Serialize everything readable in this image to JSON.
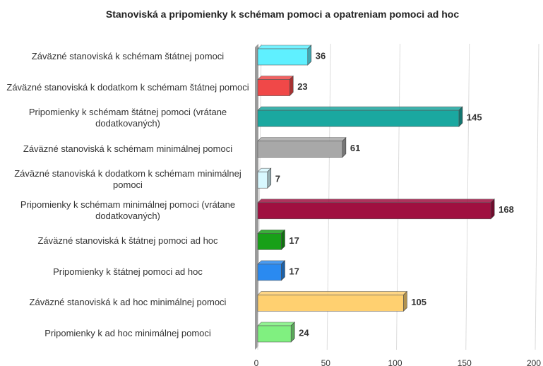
{
  "chart_data": {
    "type": "bar",
    "orientation": "horizontal",
    "title": "Stanoviská a pripomienky k schémam pomoci a opatreniam pomoci ad hoc",
    "categories": [
      "Záväzné stanoviská k schémam štátnej pomoci",
      "Záväzné stanoviská k dodatkom k schémam štátnej pomoci",
      "Pripomienky k schémam štátnej pomoci (vrátane dodatkovaných)",
      "Záväzné stanoviská k schémam minimálnej pomoci",
      "Záväzné stanoviská k dodatkom k schémam minimálnej pomoci",
      "Pripomienky k schémam minimálnej pomoci (vrátane dodatkovaných)",
      "Záväzné stanoviská k štátnej pomoci ad hoc",
      "Pripomienky k štátnej pomoci ad hoc",
      "Záväzné stanoviská k ad hoc minimálnej pomoci",
      "Pripomienky k ad hoc minimálnej pomoci"
    ],
    "values": [
      36,
      23,
      145,
      61,
      7,
      168,
      17,
      17,
      105,
      24
    ],
    "colors": [
      "#5ff0ff",
      "#f04848",
      "#1aa8a0",
      "#a8a8a8",
      "#d8f8ff",
      "#a01040",
      "#18a018",
      "#2a8af0",
      "#ffd070",
      "#80f080"
    ],
    "xlim": [
      0,
      200
    ],
    "xticks": [
      0,
      50,
      100,
      150,
      200
    ],
    "grid": true
  }
}
